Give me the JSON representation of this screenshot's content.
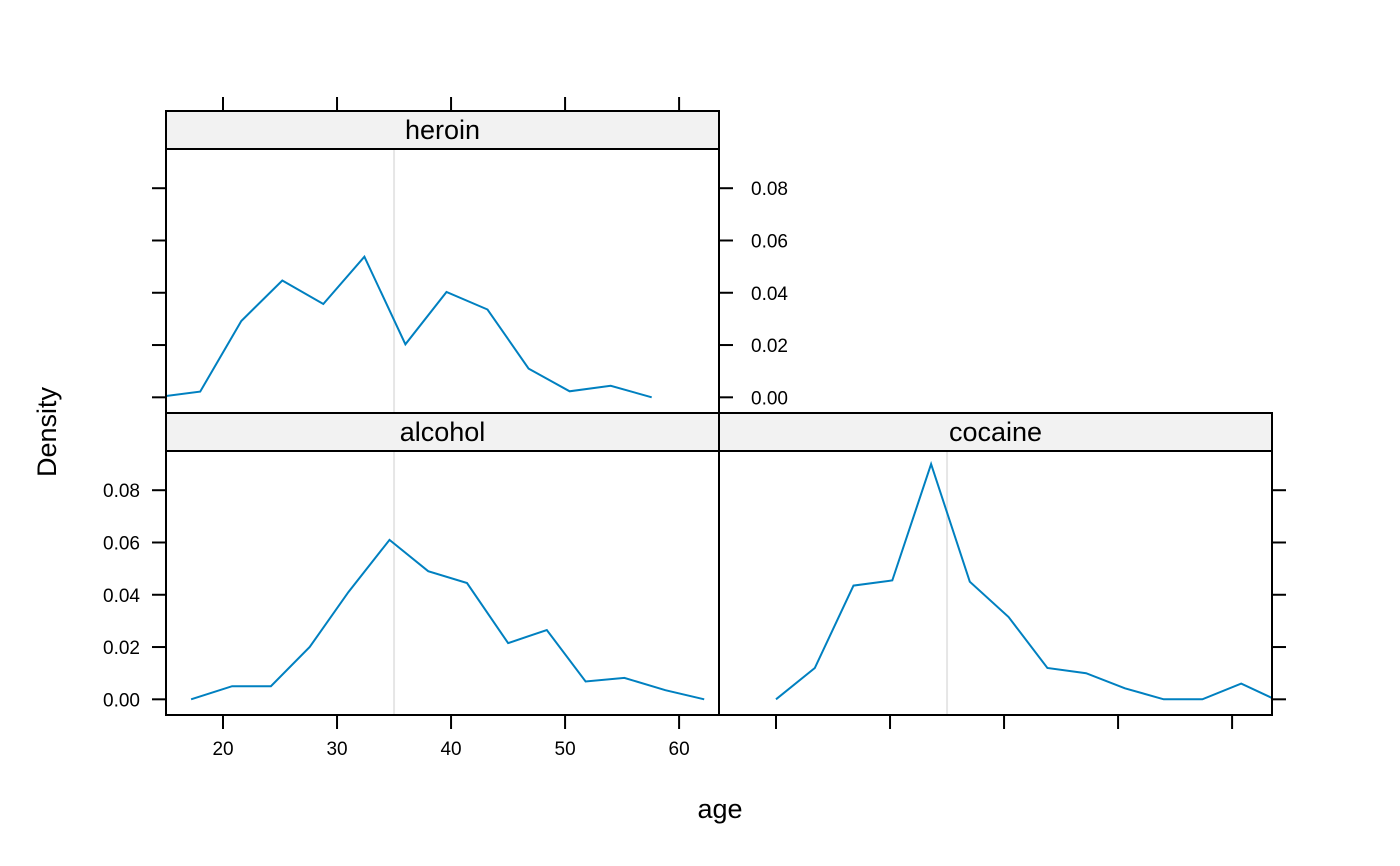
{
  "chart_data": {
    "type": "line",
    "layout": "lattice 2x2 panels, shared x and y axes",
    "xlabel": "age",
    "ylabel": "Density",
    "xlim": [
      15,
      63.5
    ],
    "ylim": [
      -0.006,
      0.095
    ],
    "x_ticks": [
      20,
      30,
      40,
      50,
      60
    ],
    "x_tick_labels": [
      "20",
      "30",
      "40",
      "50",
      "60"
    ],
    "y_ticks": [
      0,
      0.02,
      0.04,
      0.06,
      0.08
    ],
    "y_tick_labels": [
      "0.00",
      "0.02",
      "0.04",
      "0.06",
      "0.08"
    ],
    "reference_line_x": 35,
    "reference_line_color": "#e6e6e6",
    "line_color": "#0080c0",
    "strip_color": "#f2f2f2",
    "grid": false,
    "panels": [
      {
        "name": "alcohol",
        "x": [
          17.2,
          20.8,
          24.2,
          27.6,
          31.0,
          34.6,
          38.0,
          41.4,
          45.0,
          48.4,
          51.8,
          55.2,
          58.8,
          62.2
        ],
        "y": [
          0.0,
          0.005,
          0.005,
          0.02,
          0.041,
          0.061,
          0.049,
          0.0445,
          0.0215,
          0.0265,
          0.0068,
          0.0082,
          0.0035,
          0.0
        ]
      },
      {
        "name": "cocaine",
        "x": [
          20.0,
          23.4,
          26.8,
          30.2,
          33.6,
          37.0,
          40.4,
          43.8,
          47.2,
          50.6,
          54.0,
          57.4,
          60.8,
          63.5
        ],
        "y": [
          0.0,
          0.012,
          0.0435,
          0.0455,
          0.09,
          0.045,
          0.0315,
          0.012,
          0.01,
          0.0042,
          0.0,
          0.0,
          0.006,
          0.0005
        ]
      },
      {
        "name": "heroin",
        "x": [
          15.0,
          18.0,
          21.6,
          25.2,
          28.8,
          32.4,
          36.0,
          39.6,
          43.2,
          46.8,
          50.4,
          54.0,
          57.6
        ],
        "y": [
          0.0005,
          0.0022,
          0.0292,
          0.0447,
          0.0357,
          0.0538,
          0.0203,
          0.0403,
          0.0336,
          0.011,
          0.0023,
          0.0044,
          0.0
        ]
      }
    ]
  }
}
